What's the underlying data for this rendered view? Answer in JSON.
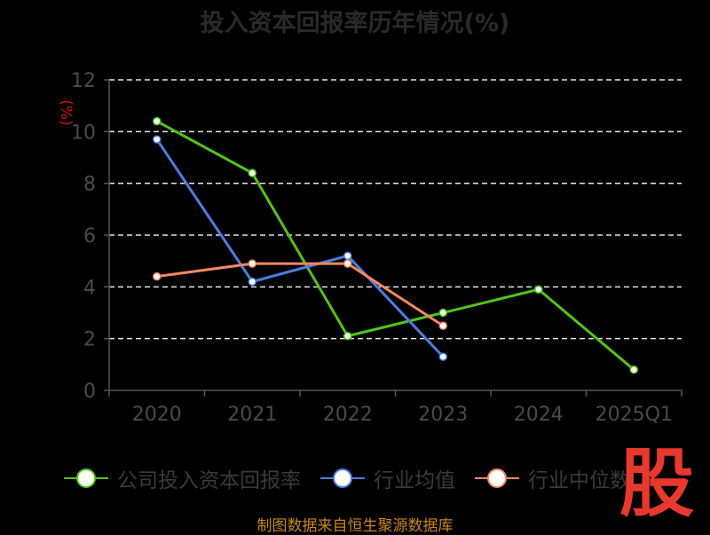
{
  "page_title": "投入资本回报率历年情况(%)",
  "unit_label": "(%)",
  "source_note": "制图数据来自恒生聚源数据库",
  "stamp_text": "股",
  "colors": {
    "background": "#000000",
    "gridline": "#e6e6e6",
    "axis": "#555555",
    "unit": "#cc1111",
    "source": "#c8871a",
    "stamp": "#e8392e"
  },
  "chart_data": {
    "type": "line",
    "title": "投入资本回报率历年情况(%)",
    "ylabel": "(%)",
    "xlabel": "",
    "categories": [
      "2020",
      "2021",
      "2022",
      "2023",
      "2024",
      "2025Q1"
    ],
    "ylim": [
      0,
      12
    ],
    "yticks": [
      "0",
      "2",
      "4",
      "6",
      "8",
      "10",
      "12"
    ],
    "grid": "horizontal dashed",
    "legend_position": "bottom",
    "series": [
      {
        "name": "公司投入资本回报率",
        "color": "#52c41a",
        "values": [
          10.4,
          8.4,
          2.1,
          3.0,
          3.9,
          0.8
        ]
      },
      {
        "name": "行业均值",
        "color": "#4a7fe0",
        "values": [
          9.7,
          4.2,
          5.2,
          1.3,
          null,
          null
        ]
      },
      {
        "name": "行业中位数",
        "color": "#f4895f",
        "values": [
          4.4,
          4.9,
          4.9,
          2.5,
          null,
          null
        ]
      }
    ]
  }
}
